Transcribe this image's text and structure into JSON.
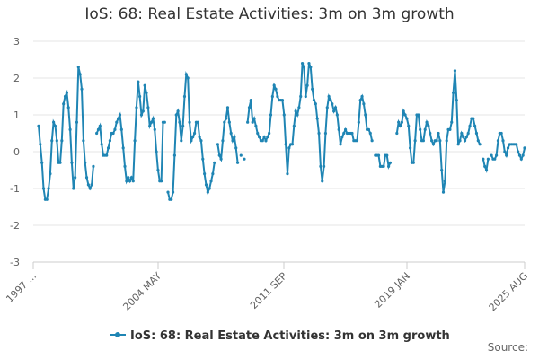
{
  "chart_data": {
    "type": "line",
    "title": "IoS: 68: Real Estate Activities: 3m on 3m growth",
    "xlabel": "",
    "ylabel": "",
    "ylim": [
      -3,
      3
    ],
    "y_ticks": [
      -3,
      -2,
      -1,
      0,
      1,
      2,
      3
    ],
    "x_tick_labels": [
      "1997 ...",
      "2004 MAY",
      "2011 SEP",
      "2019 JAN",
      "2025 AUG"
    ],
    "grid": true,
    "legend_position": "bottom",
    "series": [
      {
        "name": "IoS: 68: Real Estate Activities: 3m on 3m growth",
        "color": "#1f85b4",
        "values": [
          0.7,
          0.2,
          -0.3,
          -1.0,
          -1.3,
          -1.3,
          -1.0,
          -0.6,
          0.3,
          0.8,
          0.7,
          0.3,
          -0.3,
          -0.3,
          0.3,
          1.3,
          1.5,
          1.6,
          1.2,
          0.6,
          -0.3,
          -1.0,
          -0.7,
          0.8,
          2.3,
          2.1,
          1.7,
          0.3,
          -0.3,
          -0.7,
          -0.9,
          -1.0,
          -0.9,
          -0.4,
          null,
          0.5,
          0.6,
          0.7,
          0.2,
          -0.1,
          -0.1,
          -0.1,
          0.1,
          0.3,
          0.5,
          0.5,
          0.6,
          0.8,
          0.9,
          1.0,
          0.6,
          0.1,
          -0.4,
          -0.8,
          -0.7,
          -0.8,
          -0.7,
          -0.8,
          0.3,
          1.2,
          1.9,
          1.5,
          1.0,
          1.1,
          1.8,
          1.6,
          1.2,
          0.7,
          0.8,
          0.9,
          0.6,
          0.0,
          -0.5,
          -0.8,
          -0.8,
          0.8,
          0.8,
          null,
          -1.1,
          -1.3,
          -1.3,
          -1.1,
          -0.1,
          1.0,
          1.1,
          0.8,
          0.3,
          0.7,
          1.5,
          2.1,
          2.0,
          0.8,
          0.3,
          0.4,
          0.5,
          0.8,
          0.8,
          0.4,
          0.3,
          -0.2,
          -0.6,
          -0.9,
          -1.1,
          -1.0,
          -0.8,
          -0.6,
          -0.3,
          null,
          0.2,
          -0.1,
          -0.2,
          0.3,
          0.8,
          0.9,
          1.2,
          0.8,
          0.5,
          0.3,
          0.4,
          0.1,
          -0.3,
          null,
          -0.1,
          null,
          -0.2,
          null,
          0.8,
          1.2,
          1.4,
          0.8,
          0.9,
          0.7,
          0.5,
          0.4,
          0.3,
          0.3,
          0.4,
          0.3,
          0.4,
          0.5,
          1.0,
          1.5,
          1.8,
          1.7,
          1.5,
          1.4,
          1.4,
          1.4,
          1.0,
          0.2,
          -0.6,
          0.1,
          0.2,
          0.2,
          0.7,
          1.1,
          1.0,
          1.2,
          1.5,
          2.4,
          2.3,
          1.5,
          1.8,
          2.4,
          2.3,
          1.7,
          1.4,
          1.3,
          0.9,
          0.5,
          -0.4,
          -0.8,
          -0.4,
          0.5,
          1.2,
          1.5,
          1.4,
          1.3,
          1.1,
          1.2,
          1.0,
          0.6,
          0.2,
          0.4,
          0.5,
          0.6,
          0.5,
          0.5,
          0.5,
          0.5,
          0.3,
          0.3,
          0.3,
          0.8,
          1.4,
          1.5,
          1.3,
          1.0,
          0.6,
          0.6,
          0.5,
          0.3,
          null,
          -0.1,
          -0.1,
          -0.1,
          -0.4,
          -0.4,
          -0.4,
          -0.1,
          -0.1,
          -0.4,
          -0.3,
          null,
          null,
          null,
          0.5,
          0.8,
          0.7,
          0.8,
          1.1,
          1.0,
          0.9,
          0.7,
          0.1,
          -0.3,
          -0.3,
          0.3,
          1.0,
          1.0,
          0.6,
          0.3,
          0.3,
          0.6,
          0.8,
          0.7,
          0.5,
          0.3,
          0.2,
          0.3,
          0.3,
          0.5,
          0.3,
          -0.5,
          -1.1,
          -0.8,
          0.3,
          0.6,
          0.6,
          0.8,
          1.6,
          2.2,
          1.4,
          0.2,
          0.3,
          0.5,
          0.4,
          0.3,
          0.4,
          0.5,
          0.7,
          0.9,
          0.9,
          0.7,
          0.5,
          0.3,
          0.2,
          null,
          -0.2,
          -0.4,
          -0.5,
          -0.2,
          null,
          -0.1,
          -0.2,
          -0.2,
          -0.1,
          0.3,
          0.5,
          0.5,
          0.3,
          0.0,
          -0.1,
          0.1,
          0.2,
          0.2,
          0.2,
          0.2,
          0.2,
          0.0,
          -0.1,
          -0.2,
          -0.1,
          0.1
        ]
      }
    ]
  },
  "source_label": "Source:"
}
